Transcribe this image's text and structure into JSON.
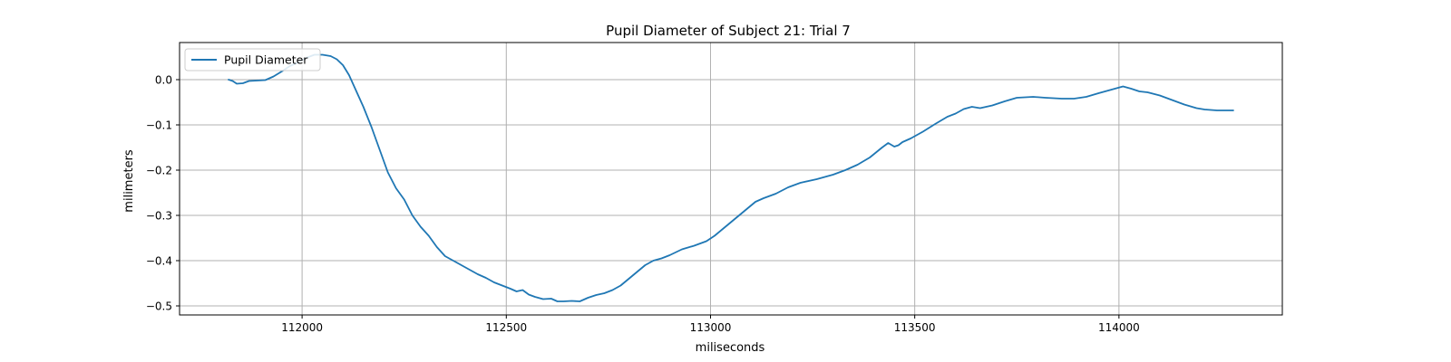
{
  "chart_data": {
    "type": "line",
    "title": "Pupil Diameter of Subject 21: Trial 7",
    "xlabel": "miliseconds",
    "ylabel": "milimeters",
    "xlim": [
      111700,
      114400
    ],
    "ylim": [
      -0.52,
      0.082
    ],
    "xticks": [
      112000,
      112500,
      113000,
      113500,
      114000
    ],
    "yticks": [
      0.0,
      -0.1,
      -0.2,
      -0.3,
      -0.4,
      -0.5
    ],
    "ytick_labels": [
      "0.0",
      "−0.1",
      "−0.2",
      "−0.3",
      "−0.4",
      "−0.5"
    ],
    "grid": true,
    "legend": {
      "position": "upper left",
      "entries": [
        "Pupil Diameter"
      ]
    },
    "colors": {
      "series": "#1f77b4",
      "grid": "#b0b0b0",
      "frame": "#000000"
    },
    "series": [
      {
        "name": "Pupil Diameter",
        "x": [
          111820,
          111830,
          111840,
          111855,
          111870,
          111890,
          111910,
          111930,
          111950,
          111970,
          111990,
          112010,
          112030,
          112050,
          112070,
          112085,
          112100,
          112115,
          112130,
          112150,
          112170,
          112190,
          112210,
          112230,
          112250,
          112270,
          112290,
          112310,
          112330,
          112350,
          112370,
          112390,
          112410,
          112430,
          112450,
          112470,
          112490,
          112510,
          112525,
          112540,
          112555,
          112570,
          112590,
          112610,
          112625,
          112640,
          112660,
          112680,
          112700,
          112720,
          112740,
          112760,
          112780,
          112800,
          112820,
          112840,
          112860,
          112880,
          112900,
          112930,
          112960,
          112990,
          113010,
          113030,
          113050,
          113070,
          113090,
          113110,
          113130,
          113160,
          113190,
          113220,
          113260,
          113300,
          113330,
          113360,
          113390,
          113420,
          113435,
          113450,
          113460,
          113470,
          113490,
          113520,
          113550,
          113580,
          113600,
          113620,
          113640,
          113660,
          113690,
          113720,
          113750,
          113790,
          113820,
          113860,
          113890,
          113920,
          113950,
          113970,
          113990,
          114010,
          114030,
          114050,
          114070,
          114100,
          114130,
          114160,
          114190,
          114210,
          114240,
          114270,
          114280
        ],
        "y": [
          0.0,
          -0.003,
          -0.009,
          -0.008,
          -0.003,
          -0.002,
          -0.001,
          0.007,
          0.018,
          0.03,
          0.038,
          0.048,
          0.055,
          0.055,
          0.052,
          0.045,
          0.032,
          0.01,
          -0.02,
          -0.06,
          -0.105,
          -0.155,
          -0.205,
          -0.24,
          -0.265,
          -0.3,
          -0.325,
          -0.345,
          -0.37,
          -0.39,
          -0.4,
          -0.41,
          -0.42,
          -0.43,
          -0.438,
          -0.448,
          -0.455,
          -0.462,
          -0.468,
          -0.465,
          -0.475,
          -0.48,
          -0.485,
          -0.484,
          -0.49,
          -0.49,
          -0.489,
          -0.49,
          -0.482,
          -0.476,
          -0.472,
          -0.465,
          -0.455,
          -0.44,
          -0.425,
          -0.41,
          -0.4,
          -0.395,
          -0.388,
          -0.375,
          -0.367,
          -0.357,
          -0.345,
          -0.33,
          -0.315,
          -0.3,
          -0.285,
          -0.27,
          -0.262,
          -0.252,
          -0.238,
          -0.228,
          -0.22,
          -0.21,
          -0.2,
          -0.188,
          -0.172,
          -0.15,
          -0.14,
          -0.148,
          -0.145,
          -0.138,
          -0.13,
          -0.115,
          -0.098,
          -0.082,
          -0.075,
          -0.065,
          -0.06,
          -0.063,
          -0.057,
          -0.048,
          -0.04,
          -0.038,
          -0.04,
          -0.042,
          -0.042,
          -0.038,
          -0.03,
          -0.025,
          -0.02,
          -0.015,
          -0.02,
          -0.026,
          -0.028,
          -0.035,
          -0.045,
          -0.055,
          -0.063,
          -0.066,
          -0.068,
          -0.068,
          -0.068
        ]
      }
    ]
  }
}
